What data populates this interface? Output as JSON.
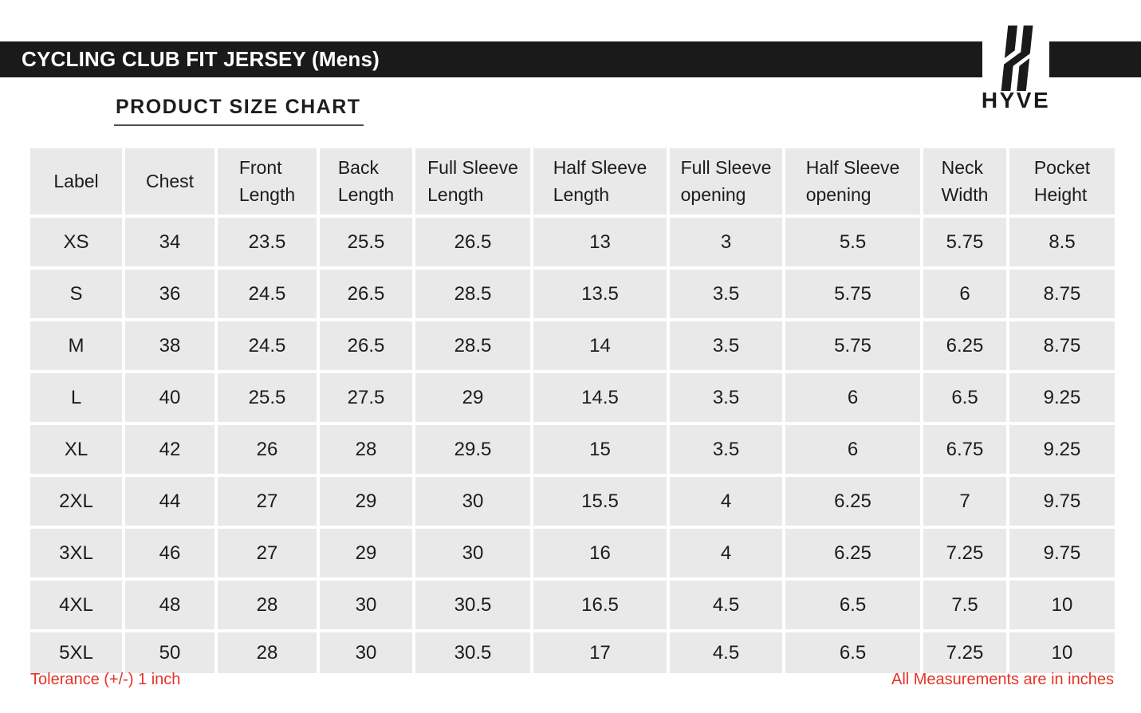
{
  "banner": {
    "title": "CYCLING CLUB FIT JERSEY (Mens)",
    "bg_color": "#1a1a1a",
    "text_color": "#ffffff"
  },
  "logo": {
    "brand": "HYVE",
    "mark": "hyve-h-monogram",
    "color": "#1a1a1a"
  },
  "section": {
    "title": "PRODUCT SIZE CHART"
  },
  "table": {
    "cell_bg": "#e9e9e9",
    "columns": [
      [
        "Label"
      ],
      [
        "Chest"
      ],
      [
        "Front",
        "Length"
      ],
      [
        "Back",
        "Length"
      ],
      [
        "Full Sleeve",
        "Length"
      ],
      [
        "Half Sleeve",
        "Length"
      ],
      [
        "Full Sleeve",
        "opening"
      ],
      [
        "Half Sleeve",
        "opening"
      ],
      [
        "Neck",
        "Width"
      ],
      [
        "Pocket",
        "Height"
      ]
    ],
    "rows": [
      [
        "XS",
        "34",
        "23.5",
        "25.5",
        "26.5",
        "13",
        "3",
        "5.5",
        "5.75",
        "8.5"
      ],
      [
        "S",
        "36",
        "24.5",
        "26.5",
        "28.5",
        "13.5",
        "3.5",
        "5.75",
        "6",
        "8.75"
      ],
      [
        "M",
        "38",
        "24.5",
        "26.5",
        "28.5",
        "14",
        "3.5",
        "5.75",
        "6.25",
        "8.75"
      ],
      [
        "L",
        "40",
        "25.5",
        "27.5",
        "29",
        "14.5",
        "3.5",
        "6",
        "6.5",
        "9.25"
      ],
      [
        "XL",
        "42",
        "26",
        "28",
        "29.5",
        "15",
        "3.5",
        "6",
        "6.75",
        "9.25"
      ],
      [
        "2XL",
        "44",
        "27",
        "29",
        "30",
        "15.5",
        "4",
        "6.25",
        "7",
        "9.75"
      ],
      [
        "3XL",
        "46",
        "27",
        "29",
        "30",
        "16",
        "4",
        "6.25",
        "7.25",
        "9.75"
      ],
      [
        "4XL",
        "48",
        "28",
        "30",
        "30.5",
        "16.5",
        "4.5",
        "6.5",
        "7.5",
        "10"
      ],
      [
        "5XL",
        "50",
        "28",
        "30",
        "30.5",
        "17",
        "4.5",
        "6.5",
        "7.25",
        "10"
      ]
    ]
  },
  "footer": {
    "tolerance_note": "Tolerance (+/-) 1 inch",
    "units_note": "All Measurements are in inches",
    "note_color": "#e63327"
  }
}
